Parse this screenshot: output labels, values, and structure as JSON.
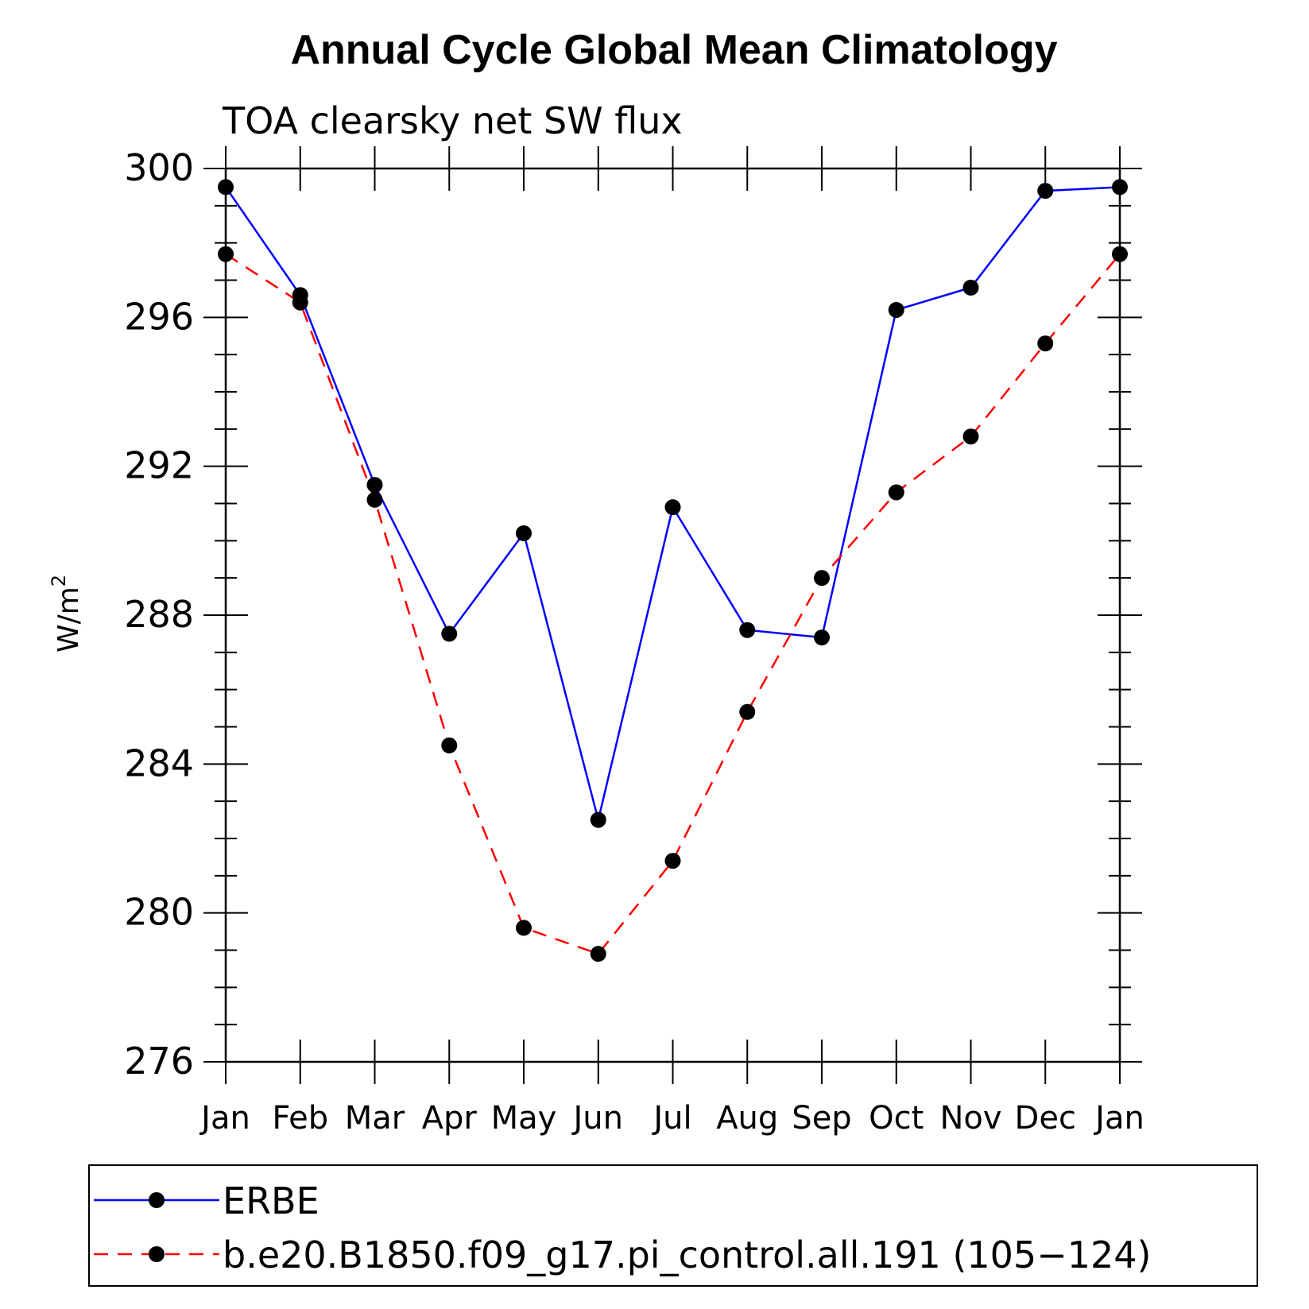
{
  "chart_data": {
    "type": "line",
    "title": "Annual Cycle Global Mean Climatology",
    "subtitle": "TOA clearsky net SW flux",
    "xlabel": "",
    "ylabel": "W/m",
    "ylabel_superscript": "2",
    "ylim": [
      276,
      300
    ],
    "yticks": [
      "276",
      "280",
      "284",
      "288",
      "292",
      "296",
      "300"
    ],
    "categories": [
      "Jan",
      "Feb",
      "Mar",
      "Apr",
      "May",
      "Jun",
      "Jul",
      "Aug",
      "Sep",
      "Oct",
      "Nov",
      "Dec",
      "Jan"
    ],
    "series": [
      {
        "name": "ERBE",
        "color": "#0000ff",
        "dash": "solid",
        "values": [
          299.5,
          296.6,
          291.5,
          287.5,
          290.2,
          282.5,
          290.9,
          287.6,
          287.4,
          296.2,
          296.8,
          299.4,
          299.5
        ]
      },
      {
        "name": "b.e20.B1850.f09_g17.pi_control.all.191 (105-124)",
        "color": "#ff0000",
        "dash": "dashed",
        "values": [
          297.7,
          296.4,
          291.1,
          284.5,
          279.6,
          278.9,
          281.4,
          285.4,
          289.0,
          291.3,
          292.8,
          295.3,
          297.7
        ]
      }
    ],
    "legend": {
      "position": "bottom",
      "entries": [
        "ERBE",
        "b.e20.B1850.f09_g17.pi_control.all.191 (105−124)"
      ]
    },
    "marker_color": "#000000"
  }
}
